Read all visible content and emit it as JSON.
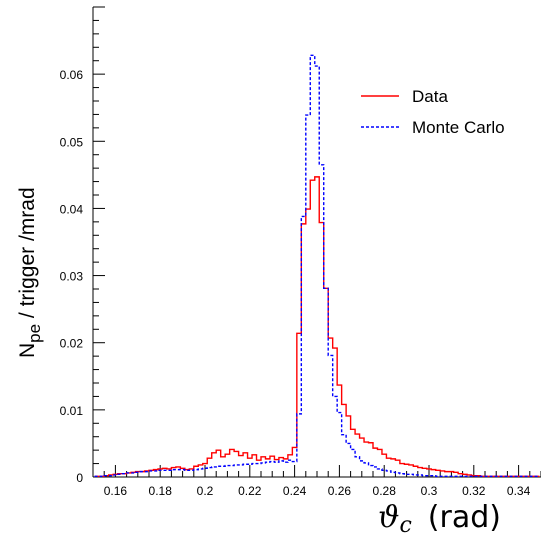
{
  "chart_data": {
    "type": "line",
    "step": true,
    "xlim": [
      0.15,
      0.35
    ],
    "ylim": [
      0,
      0.07
    ],
    "x_ticks": [
      "0.16",
      "0.18",
      "0.2",
      "0.22",
      "0.24",
      "0.26",
      "0.28",
      "0.3",
      "0.32",
      "0.34"
    ],
    "x_tick_values": [
      0.16,
      0.18,
      0.2,
      0.22,
      0.24,
      0.26,
      0.28,
      0.3,
      0.32,
      0.34
    ],
    "y_ticks": [
      "0",
      "0.01",
      "0.02",
      "0.03",
      "0.04",
      "0.05",
      "0.06"
    ],
    "y_tick_values": [
      0,
      0.01,
      0.02,
      0.03,
      0.04,
      0.05,
      0.06
    ],
    "ylabel_main": "N",
    "ylabel_sub": "pe",
    "ylabel_rest": " / trigger /mrad",
    "xlabel_symbol": "ϑ",
    "xlabel_sub": "c",
    "xlabel_unit": "(rad)",
    "legend_position": "top-right",
    "series": [
      {
        "name": "Data",
        "color": "#ff0000",
        "dash": "solid",
        "x": [
          0.152,
          0.154,
          0.156,
          0.158,
          0.16,
          0.162,
          0.164,
          0.166,
          0.168,
          0.17,
          0.172,
          0.174,
          0.176,
          0.178,
          0.18,
          0.182,
          0.184,
          0.186,
          0.188,
          0.19,
          0.192,
          0.194,
          0.196,
          0.198,
          0.2,
          0.202,
          0.204,
          0.206,
          0.208,
          0.21,
          0.212,
          0.214,
          0.216,
          0.218,
          0.22,
          0.222,
          0.224,
          0.226,
          0.228,
          0.23,
          0.232,
          0.234,
          0.236,
          0.238,
          0.24,
          0.242,
          0.244,
          0.246,
          0.248,
          0.25,
          0.252,
          0.254,
          0.256,
          0.258,
          0.26,
          0.262,
          0.264,
          0.266,
          0.268,
          0.27,
          0.272,
          0.274,
          0.276,
          0.278,
          0.28,
          0.282,
          0.284,
          0.286,
          0.288,
          0.29,
          0.292,
          0.294,
          0.296,
          0.298,
          0.3,
          0.302,
          0.304,
          0.306,
          0.308,
          0.31,
          0.312,
          0.314,
          0.316,
          0.318,
          0.32,
          0.322,
          0.324,
          0.326,
          0.328,
          0.33,
          0.332,
          0.334,
          0.336,
          0.338,
          0.34,
          0.342,
          0.344,
          0.346,
          0.348
        ],
        "y": [
          0.0001,
          0.0001,
          0.0002,
          0.0003,
          0.0004,
          0.0005,
          0.0005,
          0.0006,
          0.0007,
          0.0008,
          0.0008,
          0.0009,
          0.001,
          0.0011,
          0.0012,
          0.0013,
          0.0012,
          0.0014,
          0.0015,
          0.0013,
          0.0011,
          0.0012,
          0.0016,
          0.0018,
          0.002,
          0.0028,
          0.0036,
          0.004,
          0.003,
          0.0034,
          0.0041,
          0.0038,
          0.0032,
          0.0036,
          0.0028,
          0.0033,
          0.0025,
          0.003,
          0.0027,
          0.0031,
          0.0026,
          0.0029,
          0.0027,
          0.0033,
          0.0044,
          0.0214,
          0.0377,
          0.0399,
          0.0442,
          0.0447,
          0.0379,
          0.0281,
          0.0207,
          0.0192,
          0.0137,
          0.0108,
          0.0091,
          0.0071,
          0.0064,
          0.0058,
          0.0052,
          0.0051,
          0.0043,
          0.0041,
          0.0034,
          0.0028,
          0.0027,
          0.0025,
          0.002,
          0.0019,
          0.0018,
          0.0016,
          0.0014,
          0.0013,
          0.0012,
          0.0011,
          0.001,
          0.0009,
          0.0008,
          0.0008,
          0.0007,
          0.0005,
          0.0004,
          0.0003,
          0.0002,
          0.0002,
          0.0001,
          0.0001,
          0.0001,
          0.0001,
          0.0001,
          0.0001,
          0.0001,
          0.0001,
          0.0001,
          0.0001,
          0.0001,
          0.0001,
          0.0001
        ]
      },
      {
        "name": "Monte Carlo",
        "color": "#0000ff",
        "dash": "dashed",
        "x": [
          0.152,
          0.154,
          0.156,
          0.158,
          0.16,
          0.162,
          0.164,
          0.166,
          0.168,
          0.17,
          0.172,
          0.174,
          0.176,
          0.178,
          0.18,
          0.182,
          0.184,
          0.186,
          0.188,
          0.19,
          0.192,
          0.194,
          0.196,
          0.198,
          0.2,
          0.202,
          0.204,
          0.206,
          0.208,
          0.21,
          0.212,
          0.214,
          0.216,
          0.218,
          0.22,
          0.222,
          0.224,
          0.226,
          0.228,
          0.23,
          0.232,
          0.234,
          0.236,
          0.238,
          0.24,
          0.242,
          0.244,
          0.246,
          0.248,
          0.25,
          0.252,
          0.254,
          0.256,
          0.258,
          0.26,
          0.262,
          0.264,
          0.266,
          0.268,
          0.27,
          0.272,
          0.274,
          0.276,
          0.278,
          0.28,
          0.282,
          0.284,
          0.286,
          0.288,
          0.29,
          0.292,
          0.294,
          0.296,
          0.298,
          0.3,
          0.302,
          0.304,
          0.306,
          0.308,
          0.31,
          0.312,
          0.314,
          0.316,
          0.318,
          0.32,
          0.322,
          0.324,
          0.326,
          0.328,
          0.33,
          0.332,
          0.334,
          0.336,
          0.338,
          0.34,
          0.342,
          0.344,
          0.346,
          0.348
        ],
        "y": [
          0.0001,
          0.0001,
          0.0002,
          0.0002,
          0.0003,
          0.0004,
          0.0005,
          0.0006,
          0.0006,
          0.0007,
          0.0008,
          0.0008,
          0.0009,
          0.0009,
          0.001,
          0.001,
          0.001,
          0.0011,
          0.0011,
          0.0011,
          0.001,
          0.001,
          0.0011,
          0.0012,
          0.0013,
          0.0014,
          0.0015,
          0.0016,
          0.0016,
          0.0017,
          0.0017,
          0.0018,
          0.0018,
          0.0019,
          0.0019,
          0.002,
          0.002,
          0.0021,
          0.0022,
          0.0023,
          0.0022,
          0.0024,
          0.0022,
          0.0025,
          0.0023,
          0.0094,
          0.0388,
          0.0539,
          0.0628,
          0.0612,
          0.0465,
          0.0281,
          0.0181,
          0.012,
          0.0096,
          0.0063,
          0.005,
          0.0041,
          0.003,
          0.0024,
          0.0021,
          0.0017,
          0.0015,
          0.0012,
          0.001,
          0.0009,
          0.0007,
          0.0006,
          0.0005,
          0.0004,
          0.0004,
          0.0003,
          0.0003,
          0.0002,
          0.0002,
          0.0002,
          0.0001,
          0.0001,
          0.0001,
          0.0001,
          0.0001,
          0.0001,
          0.0001,
          0.0001,
          0.0001,
          0.0001,
          0.0001,
          0.0001,
          0.0001,
          0.0001,
          0.0001,
          0.0001,
          0.0001,
          0.0001,
          0.0001,
          0.0001,
          0.0001,
          0.0001,
          0.0001
        ]
      }
    ]
  }
}
